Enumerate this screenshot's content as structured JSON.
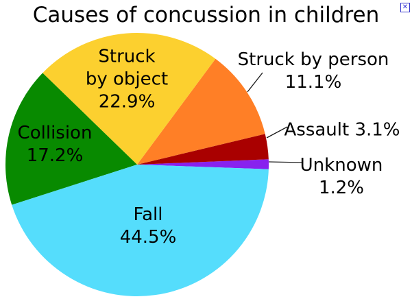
{
  "page": {
    "background": "#FFFFFF",
    "broken_image_icon": {
      "glyph": "✕",
      "color": "#2B2BD5"
    }
  },
  "chart_data": {
    "type": "pie",
    "title": "Causes of concussion in children",
    "legend_position": "none",
    "labels_on_slices": true,
    "start_angle_deg": -2,
    "direction": "counterclockwise",
    "text_color": "#000000",
    "leader_line_color": "#1A1A1A",
    "total_pct": 100,
    "slices": [
      {
        "label": "Unknown",
        "value_pct": 1.2,
        "color": "#8822EE",
        "label_lines": [
          "Unknown",
          "1.2%"
        ],
        "label_placement": "outside"
      },
      {
        "label": "Assault",
        "value_pct": 3.1,
        "color": "#A90000",
        "label_lines": [
          "Assault 3.1%"
        ],
        "label_placement": "outside"
      },
      {
        "label": "Struck by person",
        "value_pct": 11.1,
        "color": "#FF7F26",
        "label_lines": [
          "Struck by person",
          "11.1%"
        ],
        "label_placement": "outside"
      },
      {
        "label": "Struck by object",
        "value_pct": 22.9,
        "color": "#FCD02F",
        "label_lines": [
          "Struck",
          "by object",
          "22.9%"
        ],
        "label_placement": "inside"
      },
      {
        "label": "Collision",
        "value_pct": 17.2,
        "color": "#088A00",
        "label_lines": [
          "Collision",
          "17.2%"
        ],
        "label_placement": "inside"
      },
      {
        "label": "Fall",
        "value_pct": 44.5,
        "color": "#55DDFC",
        "label_lines": [
          "Fall",
          "44.5%"
        ],
        "label_placement": "inside"
      }
    ]
  }
}
